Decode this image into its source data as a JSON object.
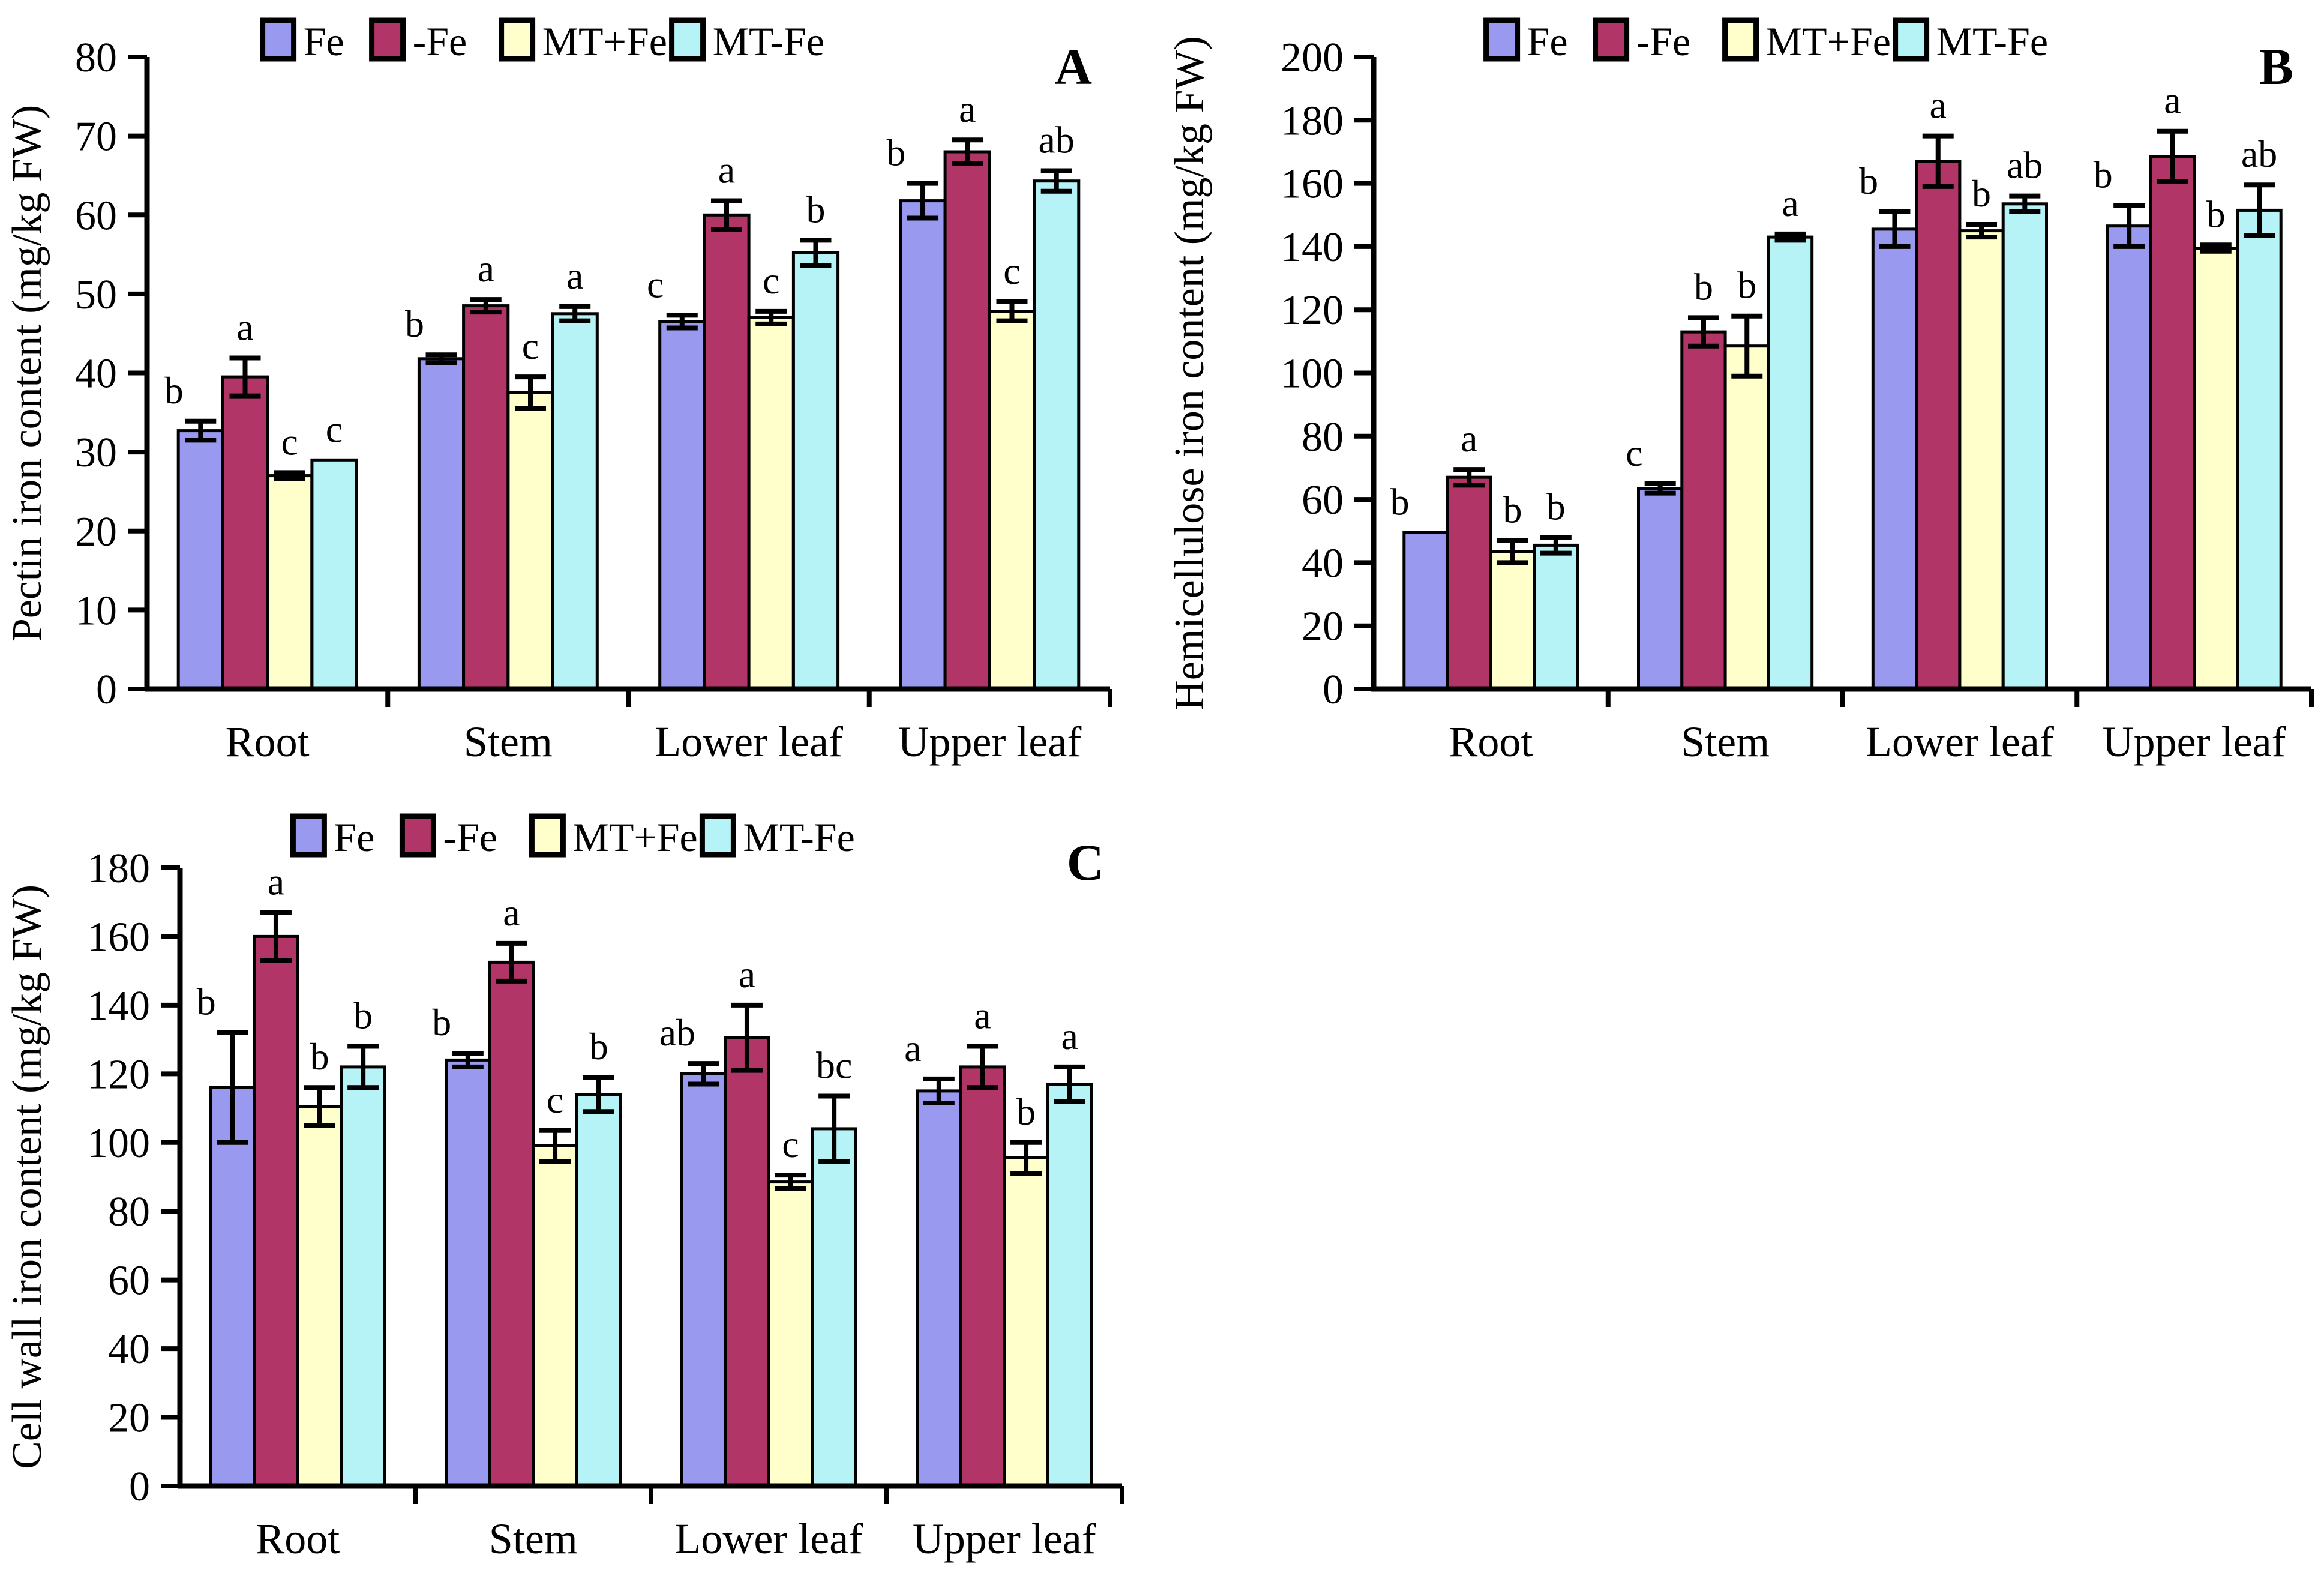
{
  "figure": {
    "background": "#ffffff",
    "treatments": [
      "Fe",
      "-Fe",
      "MT+Fe",
      "MT-Fe"
    ],
    "treatment_colors": {
      "Fe": "#9999F0",
      "-Fe": "#B23568",
      "MT+Fe": "#FFFFCC",
      "MT-Fe": "#B5F3F7"
    },
    "outline_color": "#000000"
  },
  "chart_data": [
    {
      "panel_label": "A",
      "type": "bar",
      "title": "",
      "xlabel": "",
      "ylabel": "Pectin iron content (mg/kg FW)",
      "ylim": [
        0,
        80
      ],
      "ytick_step": 10,
      "grid": false,
      "legend_position": "top",
      "legend": [
        "Fe",
        "-Fe",
        "MT+Fe",
        "MT-Fe"
      ],
      "categories": [
        "Root",
        "Stem",
        "Lower leaf",
        "Upper leaf"
      ],
      "series": [
        {
          "name": "Fe",
          "values": [
            32.7,
            41.8,
            46.5,
            61.8
          ],
          "errors": [
            1.2,
            0.5,
            0.8,
            2.2
          ],
          "sig_letters": [
            "b",
            "b",
            "c",
            "b"
          ]
        },
        {
          "name": "-Fe",
          "values": [
            39.5,
            48.5,
            60.0,
            68.0
          ],
          "errors": [
            2.4,
            0.8,
            1.8,
            1.5
          ],
          "sig_letters": [
            "a",
            "a",
            "a",
            "a"
          ]
        },
        {
          "name": "MT+Fe",
          "values": [
            27.0,
            37.5,
            47.0,
            47.8
          ],
          "errors": [
            0.4,
            2.0,
            0.8,
            1.2
          ],
          "sig_letters": [
            "c",
            "c",
            "c",
            "c"
          ]
        },
        {
          "name": "MT-Fe",
          "values": [
            29.0,
            47.5,
            55.2,
            64.3
          ],
          "errors": [
            0.0,
            0.9,
            1.6,
            1.3
          ],
          "sig_letters": [
            "c",
            "a",
            "b",
            "ab"
          ]
        }
      ]
    },
    {
      "panel_label": "B",
      "type": "bar",
      "title": "",
      "xlabel": "",
      "ylabel": "Hemicellulose iron content (mg/kg FW)",
      "ylim": [
        0,
        200
      ],
      "ytick_step": 20,
      "grid": false,
      "legend_position": "top",
      "legend": [
        "Fe",
        "-Fe",
        "MT+Fe",
        "MT-Fe"
      ],
      "categories": [
        "Root",
        "Stem",
        "Lower leaf",
        "Upper leaf"
      ],
      "series": [
        {
          "name": "Fe",
          "values": [
            49.5,
            63.5,
            145.5,
            146.5
          ],
          "errors": [
            0.0,
            1.5,
            5.5,
            6.5
          ],
          "sig_letters": [
            "b",
            "c",
            "b",
            "b"
          ]
        },
        {
          "name": "-Fe",
          "values": [
            67.0,
            113.0,
            167.0,
            168.5
          ],
          "errors": [
            2.5,
            4.5,
            8.0,
            8.0
          ],
          "sig_letters": [
            "a",
            "b",
            "a",
            "a"
          ]
        },
        {
          "name": "MT+Fe",
          "values": [
            43.5,
            108.5,
            145.0,
            139.5
          ],
          "errors": [
            3.5,
            9.5,
            2.0,
            1.0
          ],
          "sig_letters": [
            "b",
            "b",
            "b",
            "b"
          ]
        },
        {
          "name": "MT-Fe",
          "values": [
            45.5,
            143.0,
            153.5,
            151.5
          ],
          "errors": [
            2.5,
            1.0,
            2.5,
            8.0
          ],
          "sig_letters": [
            "b",
            "a",
            "ab",
            "ab"
          ]
        }
      ]
    },
    {
      "panel_label": "C",
      "type": "bar",
      "title": "",
      "xlabel": "",
      "ylabel": "Cell wall iron content (mg/kg FW)",
      "ylim": [
        0,
        180
      ],
      "ytick_step": 20,
      "grid": false,
      "legend_position": "top",
      "legend": [
        "Fe",
        "-Fe",
        "MT+Fe",
        "MT-Fe"
      ],
      "categories": [
        "Root",
        "Stem",
        "Lower leaf",
        "Upper leaf"
      ],
      "series": [
        {
          "name": "Fe",
          "values": [
            116.0,
            124.0,
            120.0,
            115.0
          ],
          "errors": [
            16.0,
            2.0,
            3.0,
            3.5
          ],
          "sig_letters": [
            "b",
            "b",
            "ab",
            "a"
          ]
        },
        {
          "name": "-Fe",
          "values": [
            160.0,
            152.5,
            130.5,
            122.0
          ],
          "errors": [
            7.0,
            5.5,
            9.5,
            6.0
          ],
          "sig_letters": [
            "a",
            "a",
            "a",
            "a"
          ]
        },
        {
          "name": "MT+Fe",
          "values": [
            110.5,
            99.0,
            88.5,
            95.5
          ],
          "errors": [
            5.5,
            4.5,
            2.0,
            4.5
          ],
          "sig_letters": [
            "b",
            "c",
            "c",
            "b"
          ]
        },
        {
          "name": "MT-Fe",
          "values": [
            122.0,
            114.0,
            104.0,
            117.0
          ],
          "errors": [
            6.0,
            5.0,
            9.5,
            5.0
          ],
          "sig_letters": [
            "b",
            "b",
            "bc",
            "a"
          ]
        }
      ]
    }
  ]
}
